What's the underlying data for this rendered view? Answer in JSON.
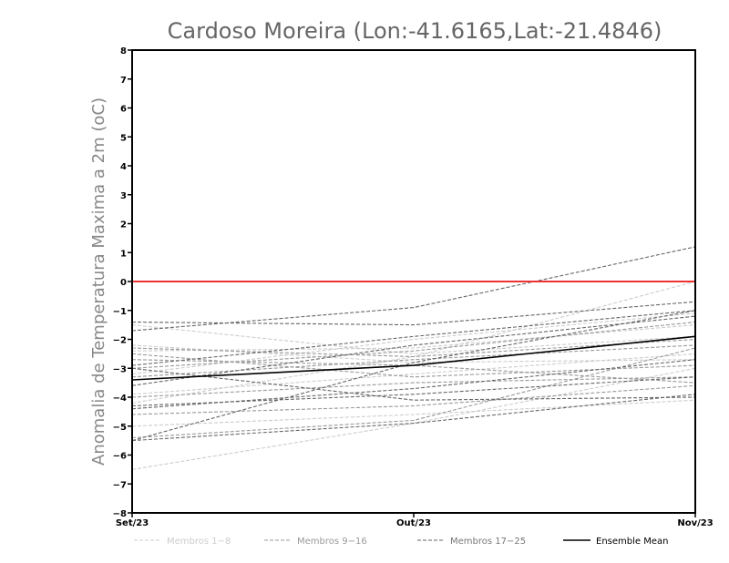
{
  "chart_data": {
    "type": "line",
    "title": "Cardoso Moreira (Lon:-41.6165,Lat:-21.4846)",
    "xlabel": "",
    "ylabel": "Anomalia de Temperatura Maxima a 2m (oC)",
    "categories": [
      "Set/23",
      "Out/23",
      "Nov/23"
    ],
    "ylim": [
      -8,
      8
    ],
    "yticks": [
      "8",
      "7",
      "6",
      "5",
      "4",
      "3",
      "2",
      "1",
      "0",
      "-1",
      "-2",
      "-3",
      "-4",
      "-5",
      "-6",
      "-7",
      "-8"
    ],
    "reference_line": {
      "value": 0,
      "color": "#ee3333"
    },
    "colors": {
      "g1": "#cccccc",
      "g2": "#999999",
      "g3": "#666666",
      "mean": "#000000"
    },
    "legend": [
      {
        "label": "Membros 1-8",
        "group": "g1"
      },
      {
        "label": "Membros 9-16",
        "group": "g2"
      },
      {
        "label": "Membros 17-25",
        "group": "g3"
      },
      {
        "label": "Ensemble Mean",
        "group": "mean"
      }
    ],
    "series": [
      {
        "name": "Membro 1",
        "group": "g1",
        "values": [
          -6.5,
          -4.9,
          -3.0
        ]
      },
      {
        "name": "Membro 2",
        "group": "g1",
        "values": [
          -5.0,
          -4.6,
          -4.1
        ]
      },
      {
        "name": "Membro 3",
        "group": "g1",
        "values": [
          -4.2,
          -2.6,
          0.0
        ]
      },
      {
        "name": "Membro 4",
        "group": "g1",
        "values": [
          -3.9,
          -3.2,
          -2.5
        ]
      },
      {
        "name": "Membro 5",
        "group": "g1",
        "values": [
          -2.4,
          -2.3,
          -1.5
        ]
      },
      {
        "name": "Membro 6",
        "group": "g1",
        "values": [
          -2.2,
          -2.8,
          -2.7
        ]
      },
      {
        "name": "Membro 7",
        "group": "g1",
        "values": [
          -1.5,
          -2.5,
          -1.9
        ]
      },
      {
        "name": "Membro 8",
        "group": "g1",
        "values": [
          -3.2,
          -2.0,
          -1.1
        ]
      },
      {
        "name": "Membro 9",
        "group": "g2",
        "values": [
          -4.6,
          -4.3,
          -3.6
        ]
      },
      {
        "name": "Membro 10",
        "group": "g2",
        "values": [
          -4.0,
          -3.5,
          -3.3
        ]
      },
      {
        "name": "Membro 11",
        "group": "g2",
        "values": [
          -3.3,
          -2.7,
          -2.2
        ]
      },
      {
        "name": "Membro 12",
        "group": "g2",
        "values": [
          -2.7,
          -2.9,
          -3.5
        ]
      },
      {
        "name": "Membro 13",
        "group": "g2",
        "values": [
          -2.3,
          -2.6,
          -2.0
        ]
      },
      {
        "name": "Membro 14",
        "group": "g2",
        "values": [
          -3.0,
          -2.4,
          -1.4
        ]
      },
      {
        "name": "Membro 15",
        "group": "g2",
        "values": [
          -5.4,
          -4.8,
          -2.3
        ]
      },
      {
        "name": "Membro 16",
        "group": "g2",
        "values": [
          -2.5,
          -3.3,
          -2.9
        ]
      },
      {
        "name": "Membro 17",
        "group": "g3",
        "values": [
          -5.5,
          -2.8,
          -1.0
        ]
      },
      {
        "name": "Membro 18",
        "group": "g3",
        "values": [
          -5.5,
          -4.9,
          -3.9
        ]
      },
      {
        "name": "Membro 19",
        "group": "g3",
        "values": [
          -1.7,
          -0.9,
          1.2
        ]
      },
      {
        "name": "Membro 20",
        "group": "g3",
        "values": [
          -1.4,
          -1.5,
          -0.7
        ]
      },
      {
        "name": "Membro 21",
        "group": "g3",
        "values": [
          -2.9,
          -1.9,
          -1.0
        ]
      },
      {
        "name": "Membro 22",
        "group": "g3",
        "values": [
          -3.0,
          -4.1,
          -4.0
        ]
      },
      {
        "name": "Membro 23",
        "group": "g3",
        "values": [
          -4.3,
          -3.9,
          -3.3
        ]
      },
      {
        "name": "Membro 24",
        "group": "g3",
        "values": [
          -3.6,
          -2.2,
          -1.2
        ]
      },
      {
        "name": "Membro 25",
        "group": "g3",
        "values": [
          -4.4,
          -3.7,
          -2.7
        ]
      },
      {
        "name": "Ensemble Mean",
        "group": "mean",
        "values": [
          -3.4,
          -2.9,
          -1.9
        ]
      }
    ]
  }
}
